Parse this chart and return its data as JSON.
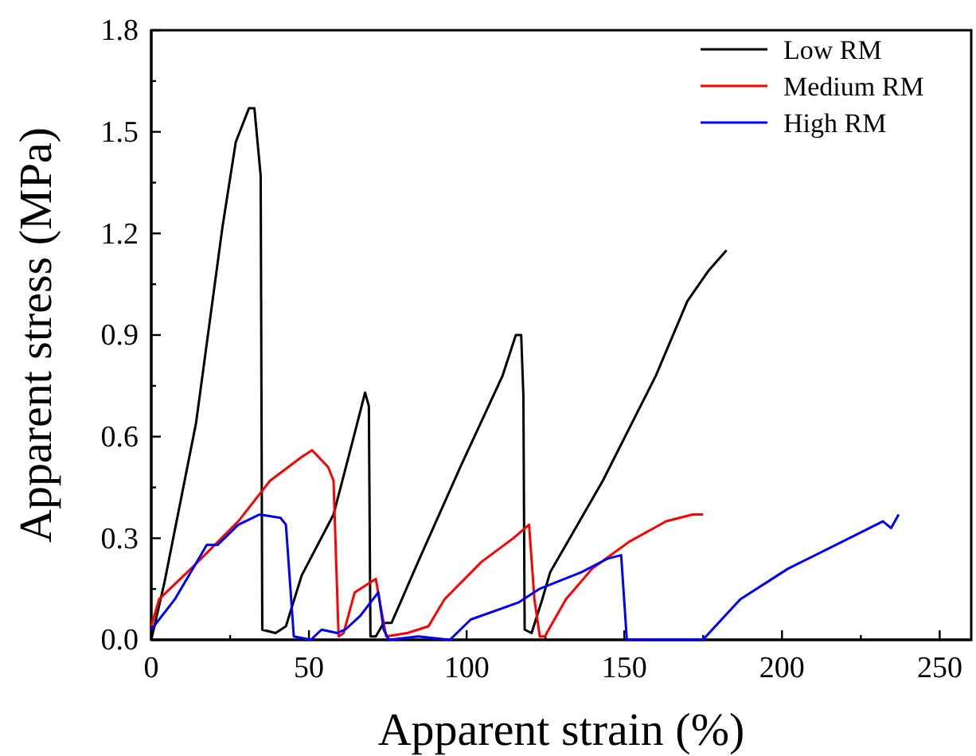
{
  "chart_data": {
    "type": "line",
    "xlabel": "Apparent strain (%)",
    "ylabel": "Apparent stress (MPa)",
    "xlim": [
      0,
      260
    ],
    "ylim": [
      0,
      1.8
    ],
    "xticks": [
      0,
      {
        "value": 25,
        "label": null
      },
      50,
      {
        "value": 75,
        "label": null
      },
      100,
      {
        "value": 125,
        "label": null
      },
      150,
      {
        "value": 175,
        "label": null
      },
      200,
      {
        "value": 225,
        "label": null
      },
      250
    ],
    "yticks": [
      {
        "value": 0,
        "label": "0.0"
      },
      {
        "value": 0.15,
        "label": null
      },
      0.3,
      {
        "value": 0.45,
        "label": null
      },
      0.6,
      {
        "value": 0.75,
        "label": null
      },
      0.9,
      {
        "value": 1.05,
        "label": null
      },
      1.2,
      {
        "value": 1.35,
        "label": null
      },
      1.5,
      {
        "value": 1.65,
        "label": null
      },
      1.8
    ],
    "legend": "top right",
    "grid": false,
    "marker": "none",
    "line_style": "solid",
    "series": [
      {
        "name": "Low RM",
        "color": "#000000",
        "x": [
          0,
          4.2,
          14.2,
          22.6,
          26.8,
          31,
          32.7,
          34.7,
          35.2,
          39.4,
          42.7,
          47.7,
          57.8,
          64.5,
          67.8,
          69,
          69.5,
          71.2,
          73.7,
          76.2,
          84.6,
          98,
          111.4,
          115.6,
          117.3,
          118,
          118.4,
          120.6,
          124,
          126.5,
          143.2,
          160,
          170,
          176.7,
          182.4
        ],
        "values": [
          0,
          0.17,
          0.64,
          1.22,
          1.47,
          1.57,
          1.57,
          1.37,
          0.03,
          0.02,
          0.04,
          0.19,
          0.37,
          0.61,
          0.73,
          0.69,
          0.01,
          0.01,
          0.05,
          0.05,
          0.23,
          0.51,
          0.78,
          0.9,
          0.9,
          0.72,
          0.03,
          0.02,
          0.12,
          0.2,
          0.47,
          0.78,
          1,
          1.09,
          1.15
        ]
      },
      {
        "name": "Medium RM",
        "color": "#ff0000",
        "x": [
          0,
          2.5,
          12.6,
          27.6,
          37.7,
          47.7,
          51,
          56.1,
          57.8,
          59.4,
          61,
          64.5,
          71.2,
          72.9,
          74.5,
          81.2,
          87.9,
          93,
          104.7,
          114.8,
          119.8,
          121.5,
          123.2,
          124.8,
          131.5,
          139.8,
          151.6,
          163.3,
          171.7,
          175
        ],
        "values": [
          0.04,
          0.12,
          0.21,
          0.35,
          0.47,
          0.54,
          0.56,
          0.51,
          0.47,
          0.01,
          0.02,
          0.14,
          0.18,
          0.09,
          0.01,
          0.02,
          0.04,
          0.12,
          0.23,
          0.3,
          0.34,
          0.12,
          0.01,
          0.01,
          0.12,
          0.21,
          0.29,
          0.35,
          0.37,
          0.37
        ]
      },
      {
        "name": "High RM",
        "color": "#0000ff",
        "x": [
          0,
          7.5,
          17.6,
          21,
          27.6,
          34.3,
          41,
          42.7,
          45.2,
          50.6,
          54,
          59,
          61.5,
          66.2,
          72,
          73.7,
          75.4,
          84.6,
          94.7,
          101.3,
          116.4,
          123,
          136.5,
          144.8,
          149,
          150.8,
          167.4,
          174.9,
          186.8,
          201.9,
          217,
          232,
          234.6,
          237
        ],
        "values": [
          0.03,
          0.12,
          0.28,
          0.28,
          0.34,
          0.37,
          0.36,
          0.34,
          0.01,
          0,
          0.03,
          0.02,
          0.03,
          0.07,
          0.14,
          0.03,
          0,
          0.01,
          0,
          0.06,
          0.11,
          0.15,
          0.2,
          0.24,
          0.25,
          0,
          0,
          0,
          0.12,
          0.21,
          0.28,
          0.35,
          0.33,
          0.37
        ]
      }
    ]
  }
}
